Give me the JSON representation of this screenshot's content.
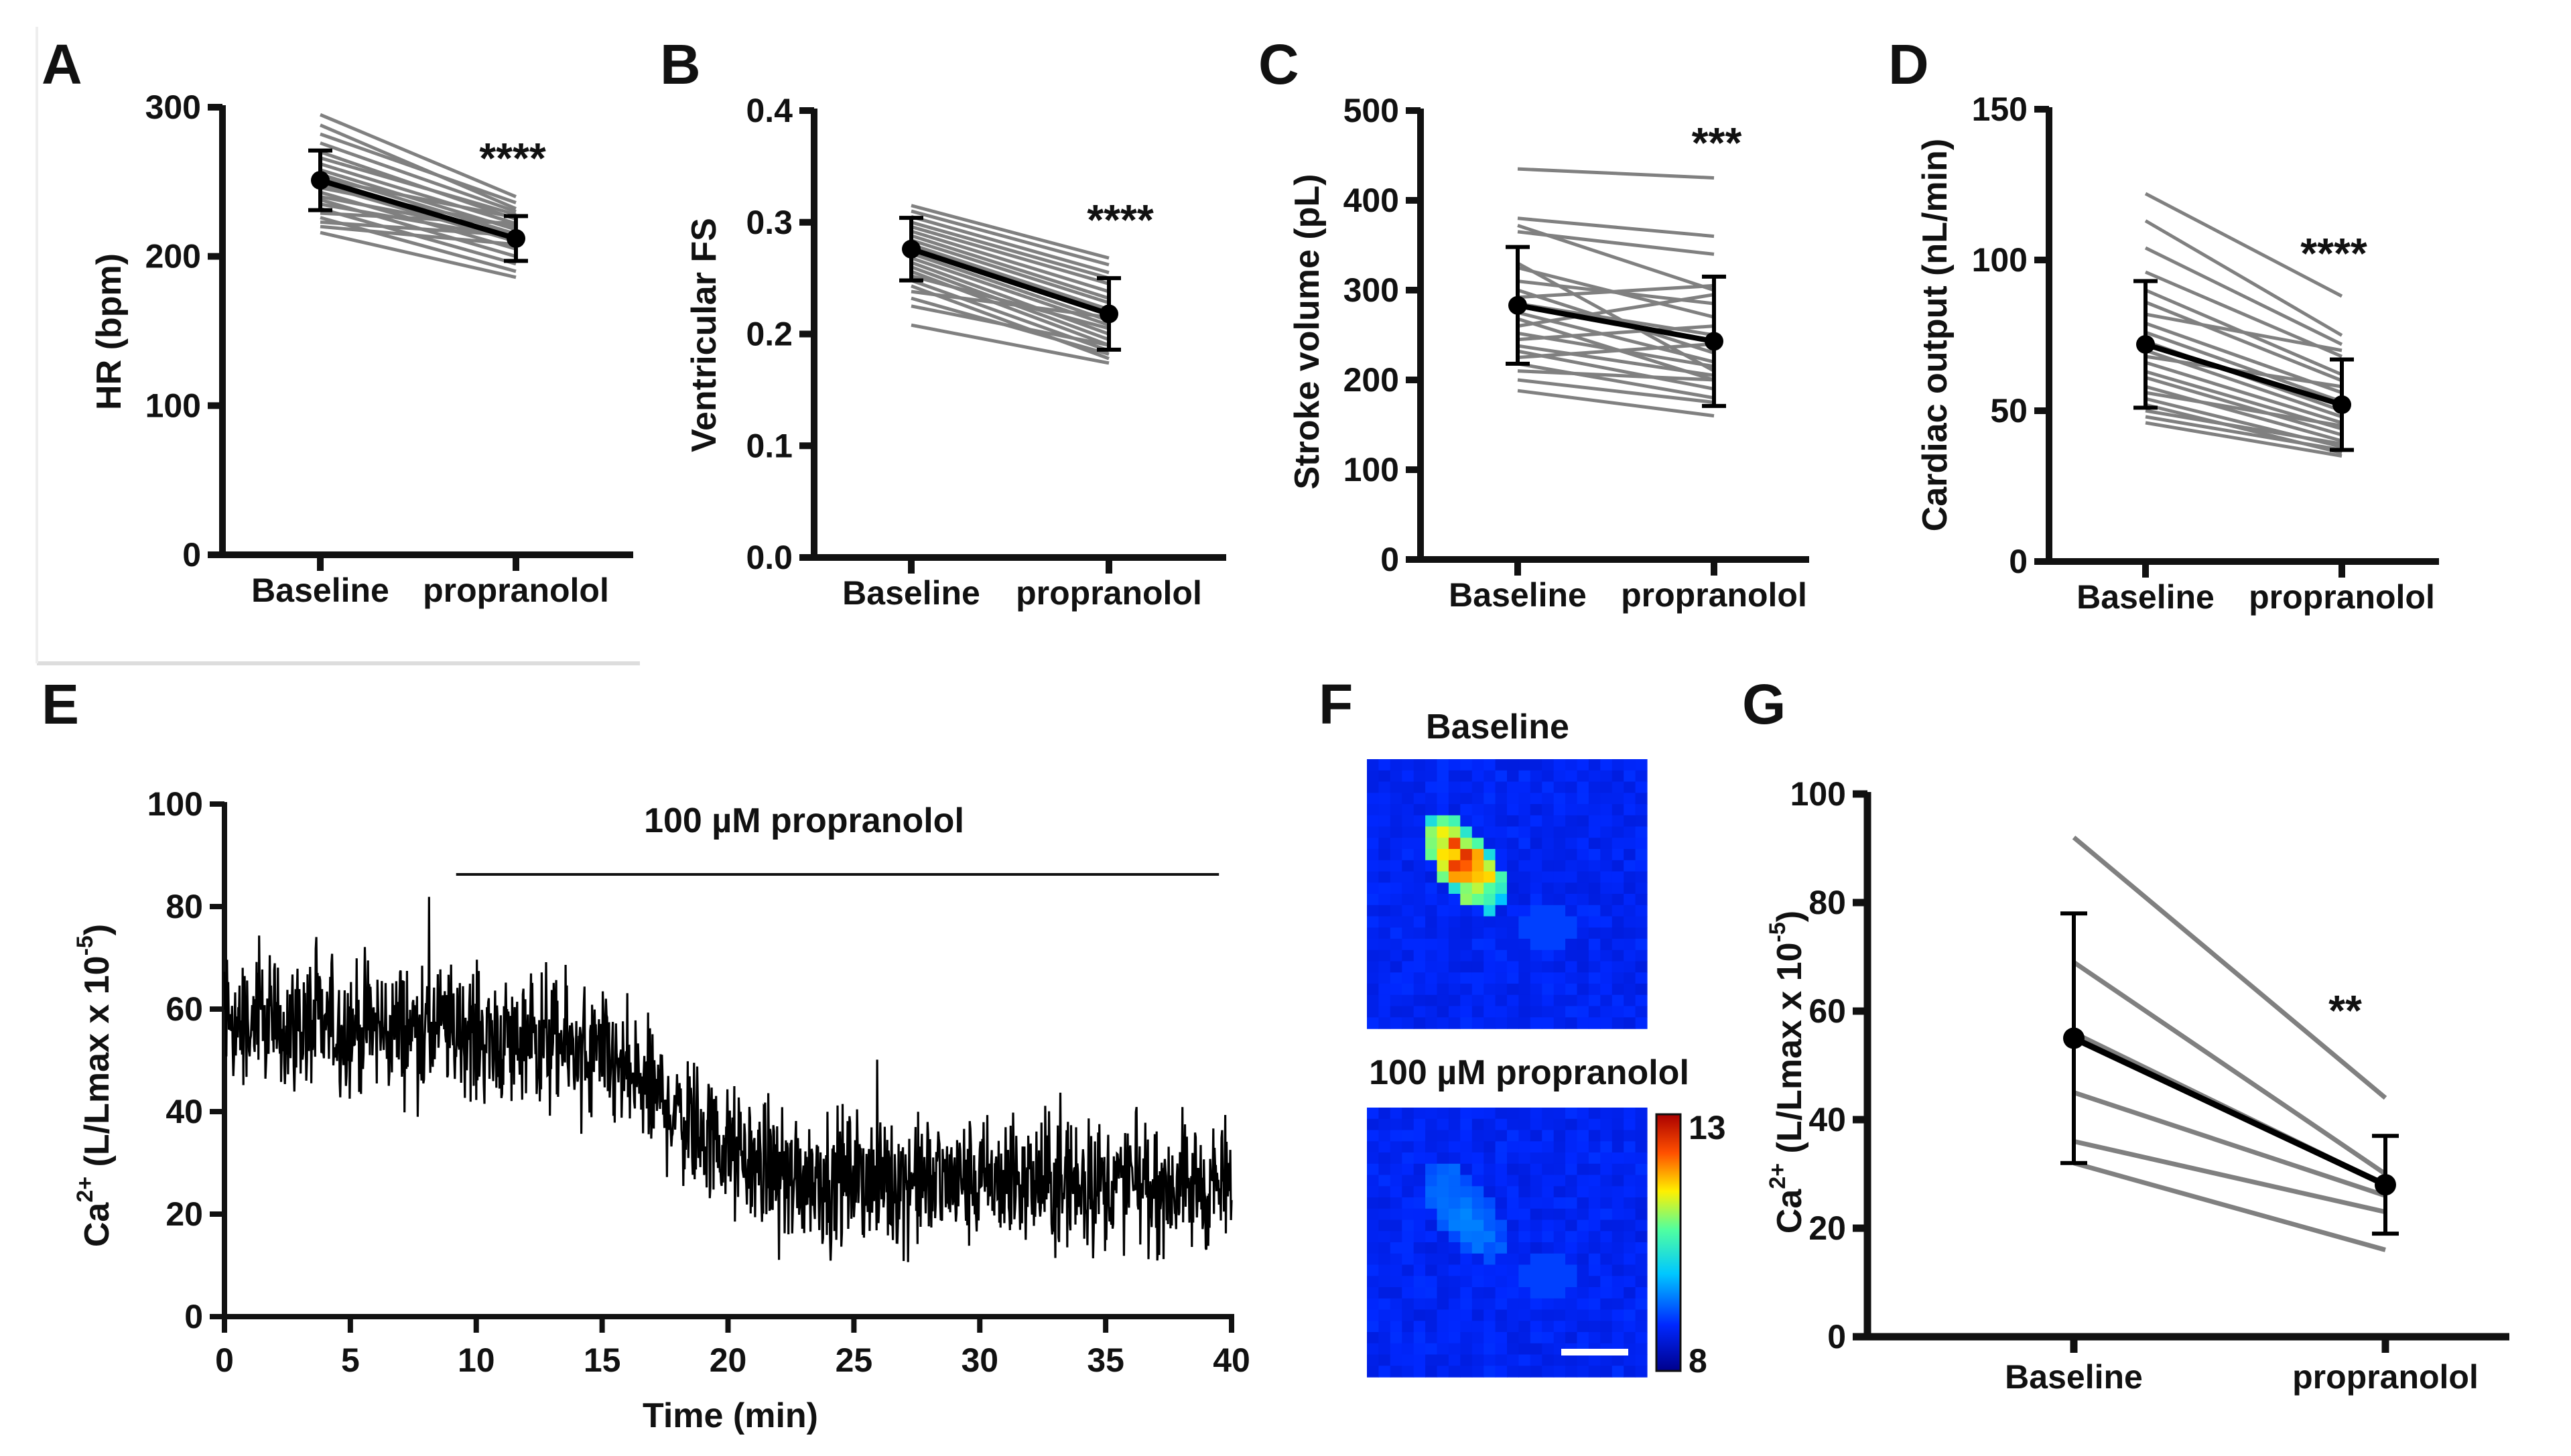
{
  "figure": {
    "panels": [
      "A",
      "B",
      "C",
      "D",
      "E",
      "F",
      "G"
    ]
  },
  "chart_data": [
    {
      "panel": "A",
      "type": "line",
      "ylabel": "HR (bpm)",
      "categories": [
        "Baseline",
        "propranolol"
      ],
      "ylim": [
        0,
        300
      ],
      "yticks": [
        0,
        100,
        200,
        300
      ],
      "significance": "****",
      "pairs": [
        [
          295,
          240
        ],
        [
          288,
          232
        ],
        [
          282,
          236
        ],
        [
          276,
          230
        ],
        [
          270,
          225
        ],
        [
          266,
          228
        ],
        [
          262,
          222
        ],
        [
          258,
          218
        ],
        [
          255,
          215
        ],
        [
          252,
          226
        ],
        [
          248,
          210
        ],
        [
          246,
          220
        ],
        [
          243,
          205
        ],
        [
          240,
          215
        ],
        [
          238,
          200
        ],
        [
          235,
          212
        ],
        [
          232,
          195
        ],
        [
          229,
          222
        ],
        [
          226,
          190
        ],
        [
          223,
          214
        ],
        [
          220,
          208
        ],
        [
          216,
          186
        ]
      ],
      "mean": [
        251,
        212
      ],
      "sd": [
        20,
        15
      ]
    },
    {
      "panel": "B",
      "type": "line",
      "ylabel": "Ventricular FS",
      "categories": [
        "Baseline",
        "propranolol"
      ],
      "ylim": [
        0,
        0.4
      ],
      "yticks": [
        "0.0",
        "0.1",
        "0.2",
        "0.3",
        "0.4"
      ],
      "significance": "****",
      "pairs": [
        [
          0.315,
          0.268
        ],
        [
          0.31,
          0.262
        ],
        [
          0.305,
          0.255
        ],
        [
          0.3,
          0.25
        ],
        [
          0.296,
          0.245
        ],
        [
          0.292,
          0.238
        ],
        [
          0.288,
          0.232
        ],
        [
          0.284,
          0.228
        ],
        [
          0.28,
          0.222
        ],
        [
          0.276,
          0.218
        ],
        [
          0.272,
          0.212
        ],
        [
          0.268,
          0.208
        ],
        [
          0.264,
          0.2
        ],
        [
          0.26,
          0.195
        ],
        [
          0.256,
          0.19
        ],
        [
          0.252,
          0.205
        ],
        [
          0.248,
          0.185
        ],
        [
          0.243,
          0.178
        ],
        [
          0.238,
          0.215
        ],
        [
          0.232,
          0.182
        ],
        [
          0.225,
          0.19
        ],
        [
          0.208,
          0.174
        ]
      ],
      "mean": [
        0.276,
        0.218
      ],
      "sd": [
        0.028,
        0.032
      ]
    },
    {
      "panel": "C",
      "type": "line",
      "ylabel": "Stroke volume (pL)",
      "categories": [
        "Baseline",
        "propranolol"
      ],
      "ylim": [
        0,
        500
      ],
      "yticks": [
        0,
        100,
        200,
        300,
        400,
        500
      ],
      "significance": "***",
      "pairs": [
        [
          435,
          425
        ],
        [
          380,
          360
        ],
        [
          372,
          300
        ],
        [
          365,
          340
        ],
        [
          330,
          210
        ],
        [
          325,
          270
        ],
        [
          310,
          285
        ],
        [
          300,
          230
        ],
        [
          292,
          305
        ],
        [
          285,
          250
        ],
        [
          275,
          220
        ],
        [
          268,
          200
        ],
        [
          260,
          295
        ],
        [
          252,
          215
        ],
        [
          245,
          260
        ],
        [
          238,
          205
        ],
        [
          232,
          190
        ],
        [
          225,
          240
        ],
        [
          218,
          180
        ],
        [
          210,
          200
        ],
        [
          200,
          175
        ],
        [
          188,
          160
        ]
      ],
      "mean": [
        283,
        243
      ],
      "sd": [
        65,
        72
      ]
    },
    {
      "panel": "D",
      "type": "line",
      "ylabel": "Cardiac output (nL/min)",
      "categories": [
        "Baseline",
        "propranolol"
      ],
      "ylim": [
        0,
        150
      ],
      "yticks": [
        0,
        50,
        100,
        150
      ],
      "significance": "****",
      "pairs": [
        [
          122,
          88
        ],
        [
          113,
          75
        ],
        [
          104,
          72
        ],
        [
          96,
          68
        ],
        [
          90,
          62
        ],
        [
          86,
          60
        ],
        [
          82,
          70
        ],
        [
          79,
          56
        ],
        [
          76,
          53
        ],
        [
          73,
          50
        ],
        [
          70,
          48
        ],
        [
          68,
          58
        ],
        [
          66,
          46
        ],
        [
          63,
          44
        ],
        [
          61,
          42
        ],
        [
          58,
          40
        ],
        [
          56,
          45
        ],
        [
          54,
          38
        ],
        [
          52,
          36
        ],
        [
          50,
          39
        ],
        [
          48,
          37
        ],
        [
          46,
          35
        ]
      ],
      "mean": [
        72,
        52
      ],
      "sd": [
        21,
        15
      ]
    },
    {
      "panel": "E",
      "type": "line",
      "xlabel": "Time (min)",
      "ylabel_main": "Ca",
      "ylabel_sup": "2+",
      "ylabel_rest": " (L/Lmax x 10",
      "ylabel_exp": "-5",
      "ylabel_close": ")",
      "xlim": [
        0,
        40
      ],
      "ylim": [
        0,
        100
      ],
      "xticks": [
        0,
        5,
        10,
        15,
        20,
        25,
        30,
        35,
        40
      ],
      "yticks": [
        0,
        20,
        40,
        60,
        80,
        100
      ],
      "annotation": "100 µM propranolol",
      "treatment_start_min": 9.2,
      "treatment_end_min": 39.5,
      "trend_minutes": [
        0,
        9,
        10,
        14,
        16,
        18,
        20,
        22,
        25,
        30,
        35,
        40
      ],
      "trend_values": [
        57,
        56,
        55,
        52,
        47,
        40,
        32,
        28,
        27,
        26,
        26,
        25
      ],
      "noise_amplitude": 9,
      "samples": 1600
    },
    {
      "panel": "F",
      "type": "heatmap",
      "images": [
        {
          "label": "Baseline"
        },
        {
          "label": "100 µM propranolol"
        }
      ],
      "colorbar": {
        "max": "13",
        "min": "8"
      }
    },
    {
      "panel": "G",
      "type": "line",
      "ylabel_main": "Ca",
      "ylabel_sup": "2+",
      "ylabel_rest": " (L/Lmax x 10",
      "ylabel_exp": "-5",
      "ylabel_close": ")",
      "categories": [
        "Baseline",
        "propranolol"
      ],
      "ylim": [
        0,
        100
      ],
      "yticks": [
        0,
        20,
        40,
        60,
        80,
        100
      ],
      "significance": "**",
      "pairs": [
        [
          92,
          44
        ],
        [
          69,
          30
        ],
        [
          56,
          28
        ],
        [
          45,
          26
        ],
        [
          36,
          23
        ],
        [
          32,
          16
        ]
      ],
      "mean": [
        55,
        28
      ],
      "sd": [
        23,
        9
      ]
    }
  ]
}
